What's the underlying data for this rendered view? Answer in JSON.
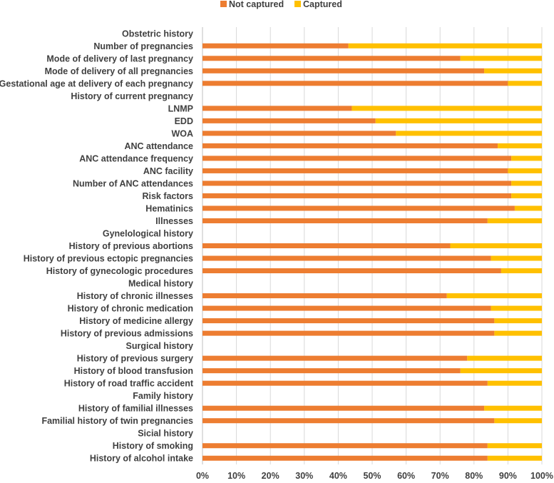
{
  "chart_data": {
    "type": "bar",
    "orientation": "horizontal",
    "stacked": "percent",
    "legend_position": "top",
    "grid": true,
    "xlim": [
      0,
      100
    ],
    "x_ticks": [
      "0%",
      "10%",
      "20%",
      "30%",
      "40%",
      "50%",
      "60%",
      "70%",
      "80%",
      "90%",
      "100%"
    ],
    "categories": [
      "Obstetric history",
      "Number of pregnancies",
      "Mode of delivery of last pregnancy",
      "Mode of delivery of all pregnancies",
      "Gestational age at delivery of each pregnancy",
      "History of current pregnancy",
      "LNMP",
      "EDD",
      "WOA",
      "ANC attendance",
      "ANC attendance frequency",
      "ANC facility",
      "Number of ANC attendances",
      "Risk factors",
      "Hematinics",
      "Illnesses",
      "Gynelological history",
      "History of previous abortions",
      "History of previous ectopic pregnancies",
      "History of gynecologic procedures",
      "Medical history",
      "History of chronic illnesses",
      "History of chronic medication",
      "History of medicine allergy",
      "History of previous admissions",
      "Surgical history",
      "History of previous surgery",
      "History of blood transfusion",
      "History of road traffic accident",
      "Family history",
      "History of familial illnesses",
      "Familial history of twin pregnancies",
      "Sicial history",
      "History of smoking",
      "History of alcohol intake"
    ],
    "series": [
      {
        "name": "Not captured",
        "color": "#ED7D31",
        "values": [
          null,
          43,
          76,
          83,
          90,
          null,
          44,
          51,
          57,
          87,
          91,
          90,
          91,
          91,
          92,
          84,
          null,
          73,
          85,
          88,
          null,
          72,
          85,
          86,
          86,
          null,
          78,
          76,
          84,
          null,
          83,
          86,
          null,
          84,
          84
        ]
      },
      {
        "name": "Captured",
        "color": "#FFC000",
        "values": [
          null,
          57,
          24,
          17,
          10,
          null,
          56,
          49,
          43,
          13,
          9,
          10,
          9,
          9,
          8,
          16,
          null,
          27,
          15,
          12,
          null,
          28,
          15,
          14,
          14,
          null,
          22,
          24,
          16,
          null,
          17,
          14,
          null,
          16,
          16
        ]
      }
    ]
  }
}
